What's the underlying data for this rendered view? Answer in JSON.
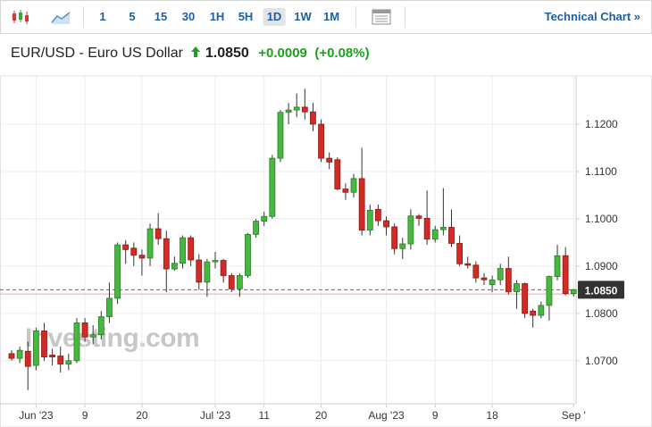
{
  "toolbar": {
    "intervals": [
      "1",
      "5",
      "15",
      "30",
      "1H",
      "5H",
      "1D",
      "1W",
      "1M"
    ],
    "link": "Technical Chart »"
  },
  "header": {
    "symbol": "EUR/USD - Euro US Dollar",
    "price": "1.0850",
    "change": "+0.0009",
    "change_percent": "(+0.08%)"
  },
  "chart_data": {
    "type": "candlestick",
    "watermark": "Investing.com",
    "categories": [
      null,
      null,
      null,
      "Jun '23",
      null,
      null,
      null,
      null,
      null,
      "9",
      null,
      null,
      null,
      null,
      null,
      null,
      "20",
      null,
      null,
      null,
      null,
      null,
      null,
      null,
      null,
      "Jul '23",
      null,
      null,
      null,
      null,
      null,
      "11",
      null,
      null,
      null,
      null,
      null,
      null,
      "20",
      null,
      null,
      null,
      null,
      null,
      null,
      null,
      "Aug '23",
      null,
      null,
      null,
      null,
      null,
      "9",
      null,
      null,
      null,
      null,
      null,
      null,
      "18",
      null,
      null,
      null,
      null,
      null,
      null,
      null,
      null,
      null,
      "Sep '"
    ],
    "open": [
      1.0715,
      1.0705,
      1.072,
      1.069,
      1.0763,
      1.0712,
      1.071,
      1.0693,
      1.07,
      1.078,
      1.075,
      1.0755,
      1.0793,
      1.0832,
      1.0945,
      1.0938,
      1.0923,
      1.0917,
      1.0979,
      1.0958,
      1.0894,
      1.0906,
      1.096,
      1.0913,
      1.0866,
      1.0909,
      1.0912,
      1.088,
      1.0852,
      1.088,
      1.0967,
      1.0995,
      1.1005,
      1.1128,
      1.1225,
      1.123,
      1.1236,
      1.1226,
      1.12,
      1.1128,
      1.1125,
      1.1063,
      1.1056,
      1.1085,
      1.0976,
      1.102,
      1.0996,
      1.0983,
      1.0937,
      1.0947,
      1.1006,
      1.1001,
      1.0957,
      1.0977,
      1.0982,
      1.0948,
      1.0905,
      1.0902,
      1.0875,
      1.0861,
      1.0871,
      1.0895,
      1.0846,
      1.0863,
      1.0805,
      1.0796,
      1.0817,
      1.0878,
      1.0922,
      1.0842
    ],
    "high": [
      1.0722,
      1.073,
      1.074,
      1.077,
      1.078,
      1.0725,
      1.073,
      1.0715,
      1.079,
      1.079,
      1.0775,
      1.0805,
      1.0865,
      1.095,
      1.0955,
      1.095,
      1.0935,
      1.099,
      1.1012,
      1.0975,
      1.092,
      1.0965,
      1.0965,
      1.0925,
      1.0915,
      1.093,
      1.0915,
      1.0885,
      1.0885,
      1.097,
      1.1,
      1.1015,
      1.1135,
      1.123,
      1.1245,
      1.1265,
      1.1275,
      1.1245,
      1.121,
      1.114,
      1.113,
      1.1075,
      1.1095,
      1.115,
      1.103,
      1.103,
      1.1005,
      1.099,
      1.096,
      1.102,
      1.101,
      1.106,
      1.0985,
      1.1065,
      1.102,
      1.0965,
      1.092,
      1.091,
      1.0885,
      1.088,
      1.0905,
      1.092,
      1.087,
      1.0865,
      1.081,
      1.0825,
      1.088,
      1.0945,
      1.094,
      1.0852
    ],
    "low": [
      1.07,
      1.0695,
      1.0638,
      1.068,
      1.07,
      1.069,
      1.0675,
      1.068,
      1.0695,
      1.074,
      1.0735,
      1.0745,
      1.078,
      1.082,
      1.0905,
      1.09,
      1.088,
      1.09,
      1.0945,
      1.0845,
      1.089,
      1.0895,
      1.09,
      1.085,
      1.0835,
      1.0895,
      1.0865,
      1.0845,
      1.0835,
      1.0875,
      1.096,
      1.0985,
      1.1,
      1.112,
      1.12,
      1.1215,
      1.121,
      1.1185,
      1.112,
      1.1105,
      1.106,
      1.104,
      1.1045,
      1.0965,
      1.0965,
      1.0985,
      1.0965,
      1.0925,
      1.0915,
      1.0935,
      1.0985,
      1.0945,
      1.095,
      1.0965,
      1.094,
      1.09,
      1.0895,
      1.0865,
      1.086,
      1.0845,
      1.086,
      1.084,
      1.081,
      1.079,
      1.077,
      1.079,
      1.0785,
      1.087,
      1.0838,
      1.0836
    ],
    "close": [
      1.0705,
      1.0722,
      1.0688,
      1.0763,
      1.0708,
      1.0708,
      1.0693,
      1.07,
      1.078,
      1.075,
      1.0755,
      1.0793,
      1.0832,
      1.0945,
      1.0935,
      1.0923,
      1.0917,
      1.0979,
      1.0958,
      1.0894,
      1.0906,
      1.096,
      1.0913,
      1.0866,
      1.0909,
      1.0912,
      1.088,
      1.0852,
      1.088,
      1.0967,
      1.0995,
      1.1005,
      1.1128,
      1.1225,
      1.123,
      1.1236,
      1.1226,
      1.12,
      1.1128,
      1.112,
      1.1063,
      1.1056,
      1.1085,
      1.0976,
      1.1018,
      1.0996,
      1.0983,
      1.0937,
      1.0947,
      1.1006,
      1.1001,
      1.0957,
      1.0977,
      1.0982,
      1.0948,
      1.0905,
      1.0902,
      1.0875,
      1.0871,
      1.0871,
      1.0895,
      1.0846,
      1.0863,
      1.08,
      1.0796,
      1.0817,
      1.0878,
      1.0922,
      1.0842,
      1.085
    ],
    "up_color": "#46b83f",
    "down_color": "#d32a26",
    "ylim": [
      1.0609,
      1.1302
    ],
    "yticks": [
      {
        "value": 1.07,
        "label": "1.0700"
      },
      {
        "value": 1.08,
        "label": "1.0800"
      },
      {
        "value": 1.09,
        "label": "1.0900"
      },
      {
        "value": 1.1,
        "label": "1.1000"
      },
      {
        "value": 1.11,
        "label": "1.1100"
      },
      {
        "value": 1.12,
        "label": "1.1200"
      }
    ],
    "last_price": {
      "value": 1.085,
      "label": "1.0850"
    },
    "reference_line": 1.0841,
    "grid": true
  }
}
